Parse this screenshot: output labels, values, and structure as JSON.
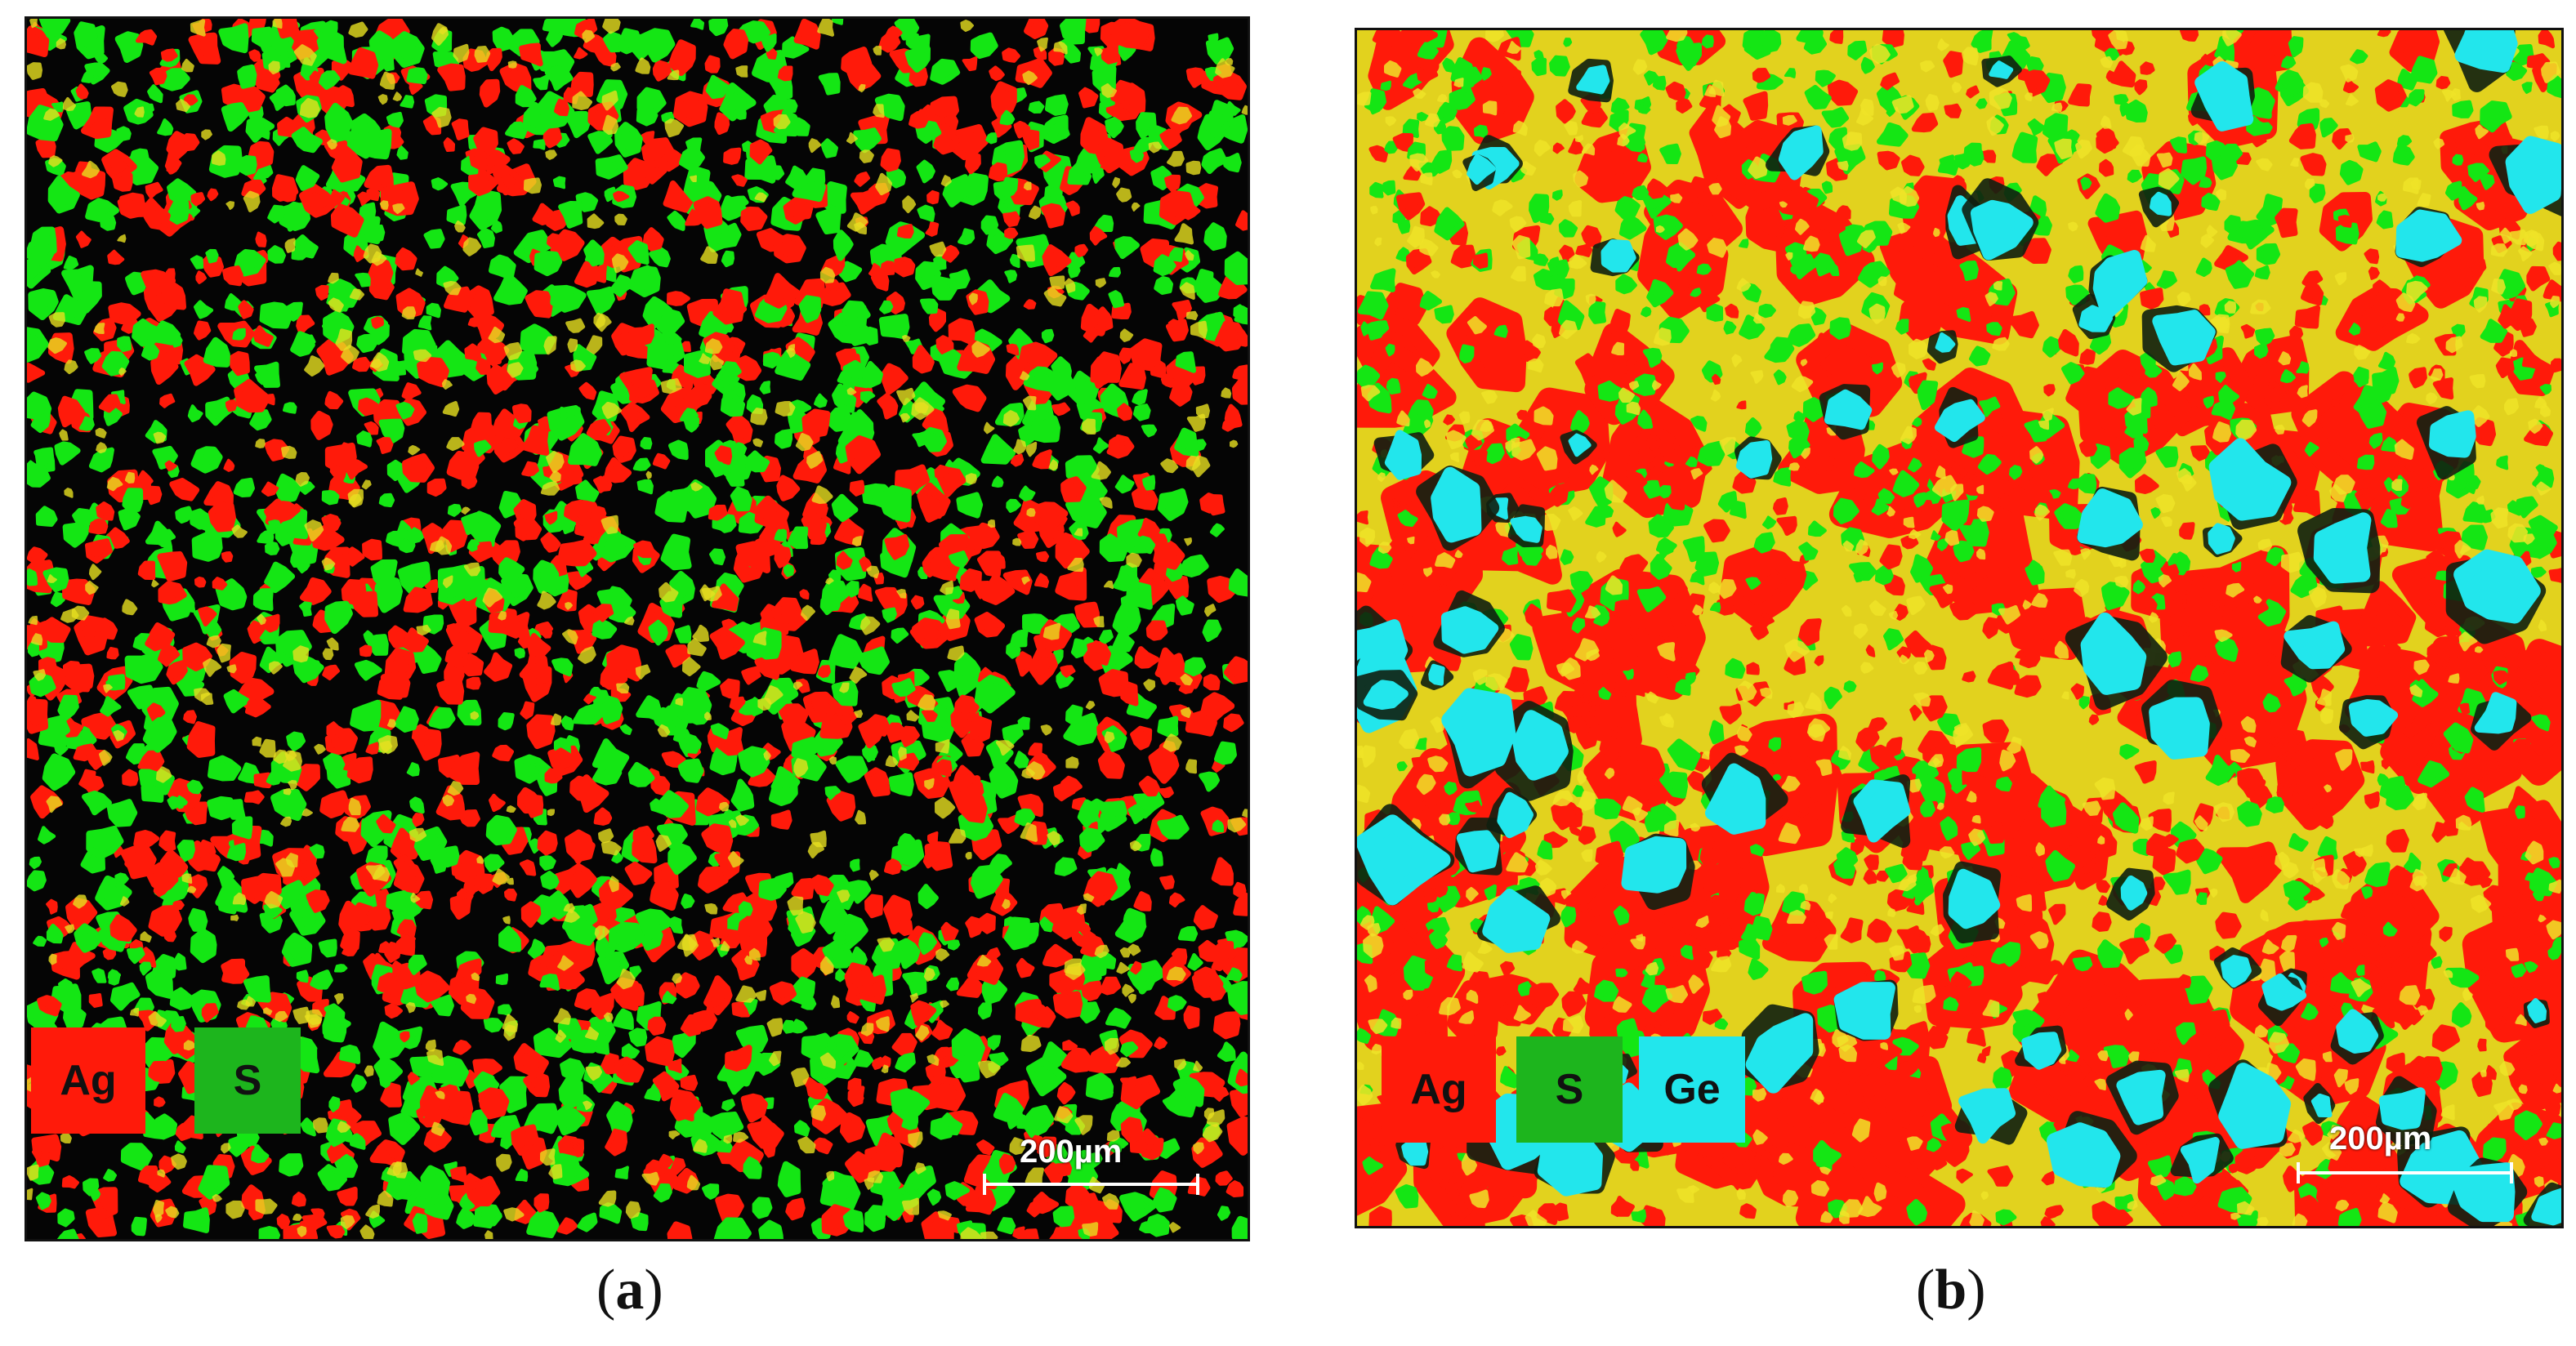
{
  "panels": [
    {
      "caption_open": "(",
      "caption_letter": "a",
      "caption_close": ")",
      "legend": [
        {
          "label": "Ag",
          "color": "#ff1a0a"
        },
        {
          "label": "S",
          "color": "#1db51d"
        }
      ],
      "scale_bar": "200µm"
    },
    {
      "caption_open": "(",
      "caption_letter": "b",
      "caption_close": ")",
      "legend": [
        {
          "label": "Ag",
          "color": "#ff1a0a"
        },
        {
          "label": "S",
          "color": "#1db51d"
        },
        {
          "label": "Ge",
          "color": "#22e6ec"
        }
      ],
      "scale_bar": "200µm"
    }
  ],
  "colors": {
    "ag": "#ff1a0a",
    "s": "#14e614",
    "ge": "#22e6ec",
    "background_a": "#050505",
    "background_b": "#e2d21e"
  }
}
